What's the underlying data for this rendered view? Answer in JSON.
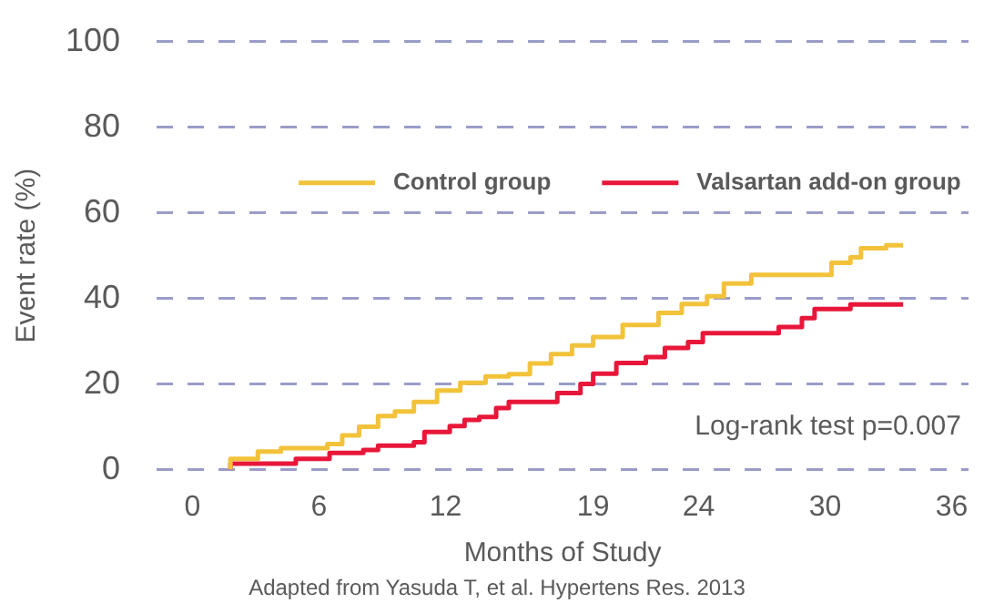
{
  "chart_data": {
    "type": "step",
    "xlabel": "Months of Study",
    "ylabel": "Event rate (%)",
    "xlim": [
      -1.7,
      36.8
    ],
    "xticks": [
      0,
      6,
      12,
      19,
      24,
      30,
      36
    ],
    "ylim": [
      0,
      100
    ],
    "yticks": [
      0,
      20,
      40,
      60,
      80,
      100
    ],
    "grid": "y",
    "legend": "top",
    "line_style": "solid",
    "marker": "none",
    "annotations": [
      "Log-rank test p=0.007",
      "Adapted from Yasuda T, et al. Hypertens Res. 2013"
    ],
    "series": [
      {
        "name": "Control group",
        "color": "#f2c23a",
        "x": [
          1.8,
          3.1,
          4.2,
          6.4,
          7.1,
          7.9,
          8.8,
          9.6,
          10.5,
          11.6,
          12.7,
          13.9,
          15.0,
          16.0,
          17.0,
          18.0,
          19.0,
          20.4,
          22.1,
          23.2,
          24.4,
          25.2,
          26.5,
          30.3,
          31.2,
          31.7,
          32.9,
          33.7
        ],
        "values": [
          0,
          2.5,
          4.2,
          5,
          6,
          8,
          10,
          12.5,
          13.6,
          15.8,
          18.5,
          20.3,
          21.8,
          22.3,
          24.8,
          27,
          29,
          31,
          33.8,
          36.6,
          38.7,
          40.5,
          43.5,
          45.5,
          48.3,
          49.6,
          51.7,
          52.4
        ]
      },
      {
        "name": "Valsartan add-on group",
        "color": "#e8173a",
        "x": [
          1.8,
          4.9,
          6.5,
          8.1,
          8.8,
          10.5,
          11.0,
          12.2,
          12.9,
          13.6,
          14.4,
          15.0,
          17.3,
          18.4,
          19.0,
          20.1,
          21.5,
          22.4,
          23.5,
          24.2,
          27.8,
          28.9,
          29.5,
          31.2,
          33.2,
          33.7
        ],
        "values": [
          0,
          1.4,
          2.5,
          3.9,
          4.6,
          5.6,
          6.4,
          8.8,
          10.2,
          11.6,
          12.3,
          14.4,
          15.8,
          17.9,
          20,
          22.4,
          24.9,
          26.3,
          28.4,
          29.8,
          31.9,
          33.3,
          35.4,
          37.5,
          38.6,
          38.6
        ]
      }
    ]
  }
}
